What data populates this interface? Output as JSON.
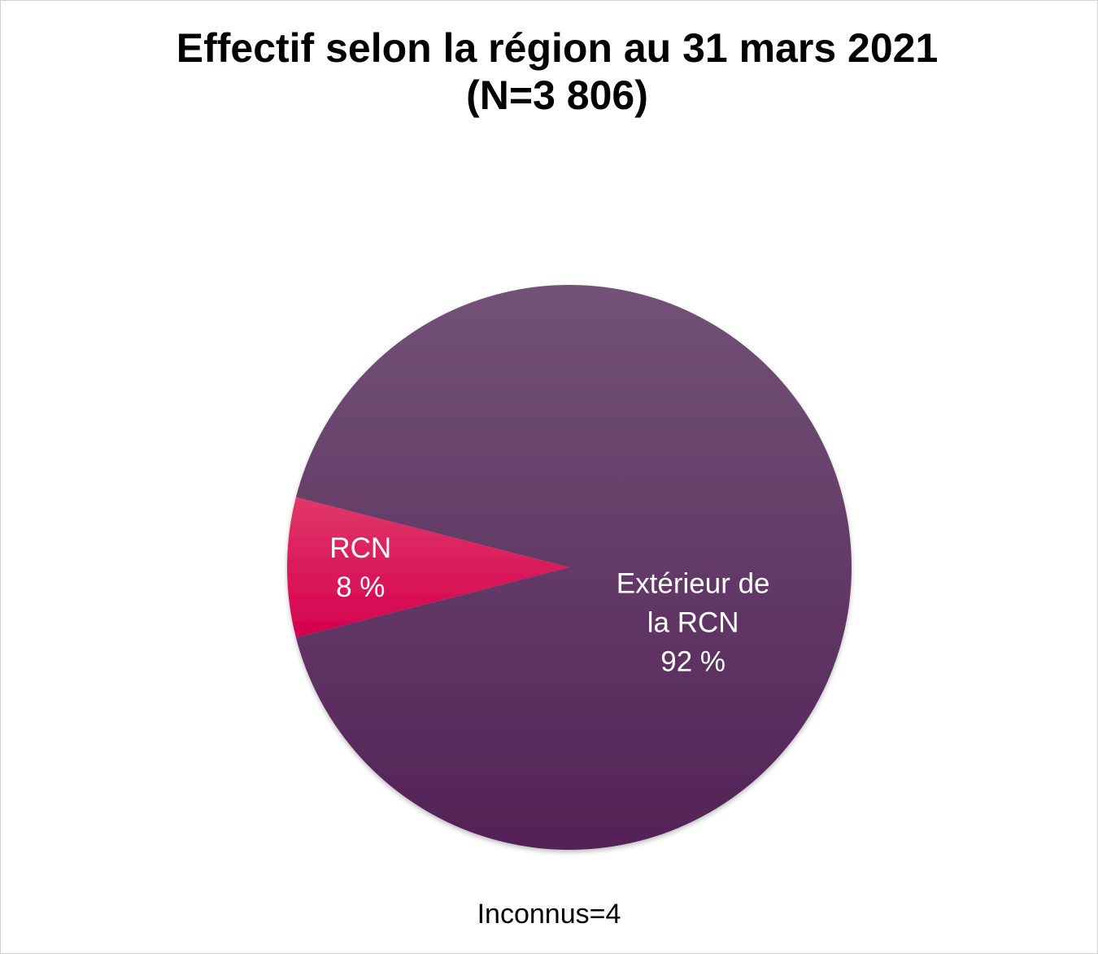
{
  "chart_data": {
    "type": "pie",
    "title_line1": "Effectif selon la région au 31 mars 2021",
    "title_line2": "(N=3 806)",
    "slices": [
      {
        "label_lines": [
          "RCN",
          "8 %"
        ],
        "value": 8,
        "color_top": "#e0386a",
        "color_bottom": "#d4004e"
      },
      {
        "label_lines": [
          "Extérieur de",
          "la RCN",
          "92 %"
        ],
        "value": 92,
        "color_top": "#735277",
        "color_bottom": "#532257"
      }
    ],
    "legend": "none",
    "footnote": "Inconnus=4"
  }
}
